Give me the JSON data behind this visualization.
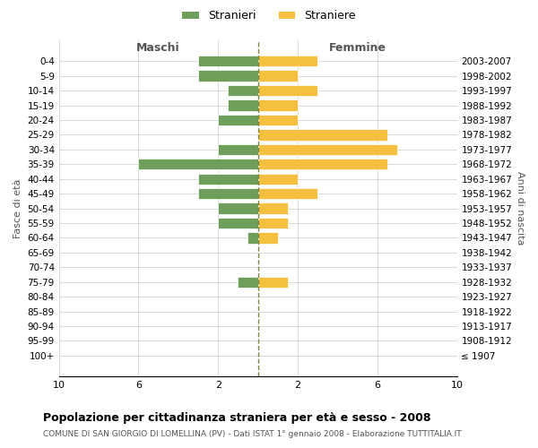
{
  "age_groups": [
    "100+",
    "95-99",
    "90-94",
    "85-89",
    "80-84",
    "75-79",
    "70-74",
    "65-69",
    "60-64",
    "55-59",
    "50-54",
    "45-49",
    "40-44",
    "35-39",
    "30-34",
    "25-29",
    "20-24",
    "15-19",
    "10-14",
    "5-9",
    "0-4"
  ],
  "birth_years": [
    "≤ 1907",
    "1908-1912",
    "1913-1917",
    "1918-1922",
    "1923-1927",
    "1928-1932",
    "1933-1937",
    "1938-1942",
    "1943-1947",
    "1948-1952",
    "1953-1957",
    "1958-1962",
    "1963-1967",
    "1968-1972",
    "1973-1977",
    "1978-1982",
    "1983-1987",
    "1988-1992",
    "1993-1997",
    "1998-2002",
    "2003-2007"
  ],
  "males": [
    0,
    0,
    0,
    0,
    0,
    1,
    0,
    0,
    0.5,
    2,
    2,
    3,
    3,
    6,
    2,
    0,
    2,
    1.5,
    1.5,
    3,
    3
  ],
  "females": [
    0,
    0,
    0,
    0,
    0,
    1.5,
    0,
    0,
    1,
    1.5,
    1.5,
    3,
    2,
    6.5,
    7,
    6.5,
    2,
    2,
    3,
    2,
    3
  ],
  "male_color": "#6d9e5a",
  "female_color": "#f5c040",
  "bar_edge_color": "#ffffff",
  "bg_color": "#ffffff",
  "grid_color": "#cccccc",
  "dashed_line_color": "#808040",
  "title": "Popolazione per cittadinanza straniera per età e sesso - 2008",
  "subtitle": "COMUNE DI SAN GIORGIO DI LOMELLINA (PV) - Dati ISTAT 1° gennaio 2008 - Elaborazione TUTTITALIA.IT",
  "xlabel_left": "Maschi",
  "xlabel_right": "Femmine",
  "ylabel_left": "Fasce di età",
  "ylabel_right": "Anni di nascita",
  "legend_stranieri": "Stranieri",
  "legend_straniere": "Straniere",
  "xlim": 10
}
